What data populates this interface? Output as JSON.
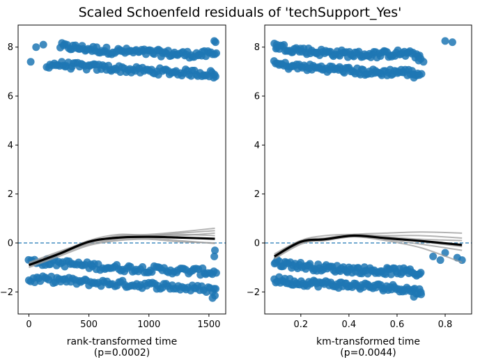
{
  "figure": {
    "title": "Scaled Schoenfeld residuals of 'techSupport_Yes'"
  },
  "chart_data": [
    {
      "type": "scatter",
      "xlabel": "rank-transformed time",
      "xlabel2": "(p=0.0002)",
      "ylabel": "",
      "xlim": [
        -90,
        1640
      ],
      "ylim": [
        -2.9,
        8.9
      ],
      "xticks": [
        0,
        500,
        1000,
        1500
      ],
      "yticks": [
        -2,
        0,
        2,
        4,
        6,
        8
      ],
      "ytick_labels": [
        "−2",
        "0",
        "2",
        "4",
        "6",
        "8"
      ],
      "xrange": [
        0,
        1560
      ],
      "color": "#1f77b4",
      "zero_line": true,
      "bands": [
        {
          "y": [
            7.4,
            8.05,
            7.95,
            7.85,
            7.8,
            7.75,
            7.7,
            7.7
          ],
          "spread": 0.14,
          "xstart": 260
        },
        {
          "y": [
            7.25,
            7.3,
            7.2,
            7.15,
            7.05,
            7.0,
            6.95,
            6.9
          ],
          "spread": 0.14,
          "xstart": 150
        },
        {
          "y": [
            -0.75,
            -0.8,
            -0.9,
            -1.0,
            -1.05,
            -1.1,
            -1.15,
            -1.2
          ],
          "spread": 0.14,
          "xstart": 0
        },
        {
          "y": [
            -1.5,
            -1.5,
            -1.6,
            -1.65,
            -1.7,
            -1.75,
            -1.85,
            -1.9
          ],
          "spread": 0.14,
          "xstart": 0
        }
      ],
      "extra_points": [
        [
          15,
          7.4
        ],
        [
          60,
          8.0
        ],
        [
          120,
          8.1
        ],
        [
          1545,
          8.25
        ],
        [
          1555,
          8.2
        ],
        [
          1540,
          6.75
        ],
        [
          1550,
          -0.3
        ],
        [
          1545,
          -0.55
        ],
        [
          1550,
          -2.15
        ],
        [
          1530,
          -2.25
        ]
      ],
      "mean_curve": {
        "x": [
          0,
          250,
          500,
          750,
          1000,
          1250,
          1550
        ],
        "y": [
          -0.9,
          -0.45,
          0.05,
          0.22,
          0.25,
          0.22,
          0.17
        ]
      },
      "bootstrap_curves": [
        {
          "x": [
            0,
            250,
            500,
            750,
            1000,
            1250,
            1550
          ],
          "y": [
            -0.95,
            -0.5,
            0.0,
            0.3,
            0.35,
            0.45,
            0.6
          ]
        },
        {
          "x": [
            0,
            250,
            500,
            750,
            1000,
            1250,
            1550
          ],
          "y": [
            -0.85,
            -0.4,
            0.1,
            0.35,
            0.3,
            0.4,
            0.5
          ]
        },
        {
          "x": [
            0,
            250,
            500,
            750,
            1000,
            1250,
            1550
          ],
          "y": [
            -0.9,
            -0.45,
            -0.05,
            0.15,
            0.2,
            0.1,
            -0.02
          ]
        },
        {
          "x": [
            0,
            250,
            500,
            750,
            1000,
            1250,
            1550
          ],
          "y": [
            -0.8,
            -0.35,
            0.05,
            0.25,
            0.3,
            0.3,
            0.4
          ]
        },
        {
          "x": [
            0,
            250,
            500,
            750,
            1000,
            1250,
            1550
          ],
          "y": [
            -1.0,
            -0.55,
            -0.1,
            0.1,
            0.15,
            0.05,
            0.0
          ]
        },
        {
          "x": [
            0,
            250,
            500,
            750,
            1000,
            1250,
            1550
          ],
          "y": [
            -0.9,
            -0.4,
            0.0,
            0.2,
            0.3,
            0.35,
            0.3
          ]
        }
      ]
    },
    {
      "type": "scatter",
      "xlabel": "km-transformed time",
      "xlabel2": "(p=0.0044)",
      "ylabel": "",
      "xlim": [
        0.05,
        0.91
      ],
      "ylim": [
        -2.9,
        8.9
      ],
      "xticks": [
        0.2,
        0.4,
        0.6,
        0.8
      ],
      "xtick_labels": [
        "0.2",
        "0.4",
        "0.6",
        "0.8"
      ],
      "yticks": [
        -2,
        0,
        2,
        4,
        6,
        8
      ],
      "ytick_labels": [
        "−2",
        "0",
        "2",
        "4",
        "6",
        "8"
      ],
      "xrange": [
        0.09,
        0.7
      ],
      "color": "#1f77b4",
      "zero_line": true,
      "bands": [
        {
          "y": [
            8.05,
            7.9,
            7.8,
            7.75,
            7.7,
            7.7,
            7.75,
            7.65
          ],
          "spread": 0.14,
          "xstart": 0.09
        },
        {
          "y": [
            7.3,
            7.2,
            7.15,
            7.1,
            7.0,
            6.95,
            7.0,
            6.9
          ],
          "spread": 0.14,
          "xstart": 0.09
        },
        {
          "y": [
            -0.8,
            -0.9,
            -1.0,
            -1.05,
            -1.1,
            -1.15,
            -1.15,
            -1.25
          ],
          "spread": 0.14,
          "xstart": 0.09
        },
        {
          "y": [
            -1.5,
            -1.6,
            -1.65,
            -1.7,
            -1.75,
            -1.8,
            -1.85,
            -2.0
          ],
          "spread": 0.14,
          "xstart": 0.09
        }
      ],
      "extra_points": [
        [
          0.1,
          8.1
        ],
        [
          0.69,
          7.45
        ],
        [
          0.71,
          7.4
        ],
        [
          0.8,
          8.25
        ],
        [
          0.83,
          8.2
        ],
        [
          0.67,
          6.75
        ],
        [
          0.75,
          -0.55
        ],
        [
          0.78,
          -0.7
        ],
        [
          0.8,
          -0.4
        ],
        [
          0.85,
          -0.6
        ],
        [
          0.87,
          -0.7
        ],
        [
          0.7,
          -2.1
        ],
        [
          0.67,
          -2.2
        ]
      ],
      "mean_curve": {
        "x": [
          0.09,
          0.2,
          0.3,
          0.42,
          0.55,
          0.7,
          0.87
        ],
        "y": [
          -0.55,
          0.05,
          0.15,
          0.3,
          0.2,
          0.08,
          -0.08
        ]
      },
      "bootstrap_curves": [
        {
          "x": [
            0.09,
            0.2,
            0.3,
            0.42,
            0.55,
            0.7,
            0.87
          ],
          "y": [
            -0.6,
            0.0,
            0.2,
            0.35,
            0.4,
            0.45,
            0.4
          ]
        },
        {
          "x": [
            0.09,
            0.2,
            0.3,
            0.42,
            0.55,
            0.7,
            0.87
          ],
          "y": [
            -0.5,
            0.1,
            0.3,
            0.35,
            0.3,
            0.3,
            0.2
          ]
        },
        {
          "x": [
            0.09,
            0.2,
            0.3,
            0.42,
            0.55,
            0.7,
            0.87
          ],
          "y": [
            -0.55,
            0.05,
            0.1,
            0.25,
            0.1,
            -0.2,
            -0.8
          ]
        },
        {
          "x": [
            0.09,
            0.2,
            0.3,
            0.42,
            0.55,
            0.7,
            0.87
          ],
          "y": [
            -0.65,
            -0.05,
            0.15,
            0.3,
            0.15,
            -0.05,
            -0.3
          ]
        },
        {
          "x": [
            0.09,
            0.2,
            0.3,
            0.42,
            0.55,
            0.7,
            0.87
          ],
          "y": [
            -0.45,
            0.1,
            0.2,
            0.28,
            0.25,
            0.15,
            0.1
          ]
        },
        {
          "x": [
            0.09,
            0.2,
            0.3,
            0.42,
            0.55,
            0.7,
            0.87
          ],
          "y": [
            -0.6,
            0.0,
            0.1,
            0.3,
            0.2,
            0.05,
            -0.15
          ]
        }
      ]
    }
  ]
}
